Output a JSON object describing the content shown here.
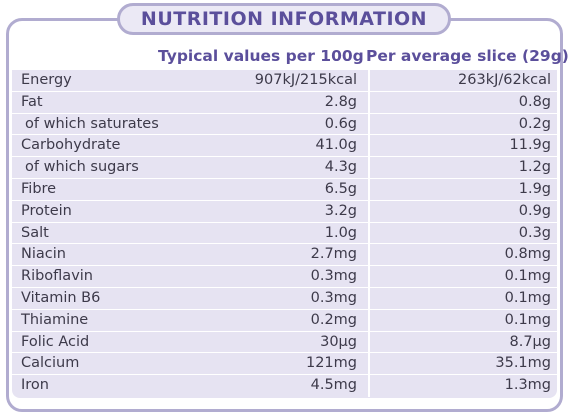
{
  "title": "NUTRITION INFORMATION",
  "headers": {
    "per_100g": "Typical values per 100g",
    "per_slice": "Per average slice (29g)"
  },
  "rows": [
    {
      "label": "Energy",
      "per_100g": "907kJ/215kcal",
      "per_slice": "263kJ/62kcal"
    },
    {
      "label": "Fat",
      "per_100g": "2.8g",
      "per_slice": "0.8g"
    },
    {
      "label": " of which saturates",
      "per_100g": "0.6g",
      "per_slice": "0.2g"
    },
    {
      "label": "Carbohydrate",
      "per_100g": "41.0g",
      "per_slice": "11.9g"
    },
    {
      "label": " of which sugars",
      "per_100g": "4.3g",
      "per_slice": "1.2g"
    },
    {
      "label": "Fibre",
      "per_100g": "6.5g",
      "per_slice": "1.9g"
    },
    {
      "label": "Protein",
      "per_100g": "3.2g",
      "per_slice": "0.9g"
    },
    {
      "label": "Salt",
      "per_100g": "1.0g",
      "per_slice": "0.3g"
    },
    {
      "label": "Niacin",
      "per_100g": "2.7mg",
      "per_slice": "0.8mg"
    },
    {
      "label": "Riboflavin",
      "per_100g": "0.3mg",
      "per_slice": "0.1mg"
    },
    {
      "label": "Vitamin B6",
      "per_100g": "0.3mg",
      "per_slice": "0.1mg"
    },
    {
      "label": "Thiamine",
      "per_100g": "0.2mg",
      "per_slice": "0.1mg"
    },
    {
      "label": "Folic Acid",
      "per_100g": "30µg",
      "per_slice": "8.7µg"
    },
    {
      "label": "Calcium",
      "per_100g": "121mg",
      "per_slice": "35.1mg"
    },
    {
      "label": "Iron",
      "per_100g": "4.5mg",
      "per_slice": "1.3mg"
    }
  ],
  "colors": {
    "accent": "#5b4f9b",
    "border": "#b1acd0",
    "table_bg": "#e6e3f2"
  }
}
